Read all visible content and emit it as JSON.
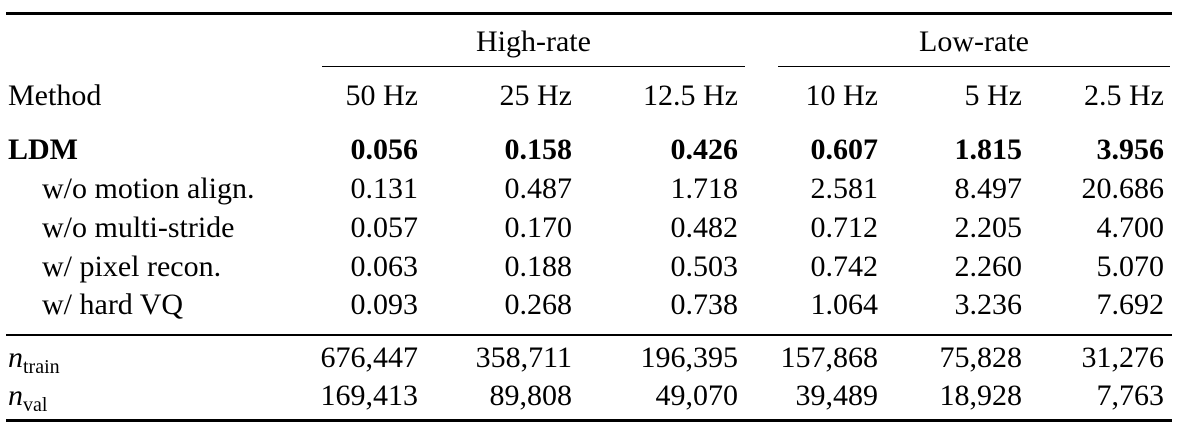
{
  "table": {
    "groups": [
      {
        "label": "High-rate"
      },
      {
        "label": "Low-rate"
      }
    ],
    "method_header": "Method",
    "columns": [
      "50 Hz",
      "25 Hz",
      "12.5 Hz",
      "10 Hz",
      "5 Hz",
      "2.5 Hz"
    ],
    "rows": [
      {
        "method": "LDM",
        "bold": true,
        "values": [
          "0.056",
          "0.158",
          "0.426",
          "0.607",
          "1.815",
          "3.956"
        ]
      },
      {
        "method": "w/o motion align.",
        "bold": false,
        "values": [
          "0.131",
          "0.487",
          "1.718",
          "2.581",
          "8.497",
          "20.686"
        ]
      },
      {
        "method": "w/o multi-stride",
        "bold": false,
        "values": [
          "0.057",
          "0.170",
          "0.482",
          "0.712",
          "2.205",
          "4.700"
        ]
      },
      {
        "method": "w/ pixel recon.",
        "bold": false,
        "values": [
          "0.063",
          "0.188",
          "0.503",
          "0.742",
          "2.260",
          "5.070"
        ]
      },
      {
        "method": "w/ hard VQ",
        "bold": false,
        "values": [
          "0.093",
          "0.268",
          "0.738",
          "1.064",
          "3.236",
          "7.692"
        ]
      }
    ],
    "counts": [
      {
        "symbol": "n",
        "subscript": "train",
        "values": [
          "676,447",
          "358,711",
          "196,395",
          "157,868",
          "75,828",
          "31,276"
        ]
      },
      {
        "symbol": "n",
        "subscript": "val",
        "values": [
          "169,413",
          "89,808",
          "49,070",
          "39,489",
          "18,928",
          "7,763"
        ]
      }
    ]
  }
}
